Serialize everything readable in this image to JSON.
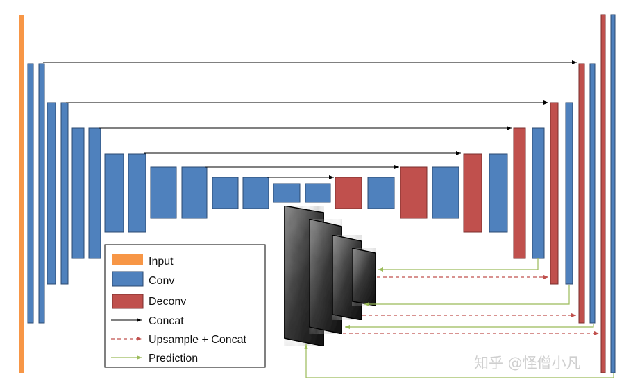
{
  "colors": {
    "input": "#F79646",
    "conv": "#4F81BD",
    "deconv": "#C0504D",
    "block_stroke": "#2B4970",
    "deconv_stroke": "#7A2E2C",
    "concat": "#000000",
    "upsample": "#C0504D",
    "prediction": "#9BBB59"
  },
  "legend": {
    "items": [
      {
        "label": "Input",
        "kind": "input-swatch"
      },
      {
        "label": "Conv",
        "kind": "conv-swatch"
      },
      {
        "label": "Deconv",
        "kind": "deconv-swatch"
      },
      {
        "label": "Concat",
        "kind": "concat-arrow"
      },
      {
        "label": "Upsample + Concat",
        "kind": "upsample-arrow"
      },
      {
        "label": "Prediction",
        "kind": "prediction-arrow"
      }
    ]
  },
  "watermark": "知乎 @怪僧小凡"
}
